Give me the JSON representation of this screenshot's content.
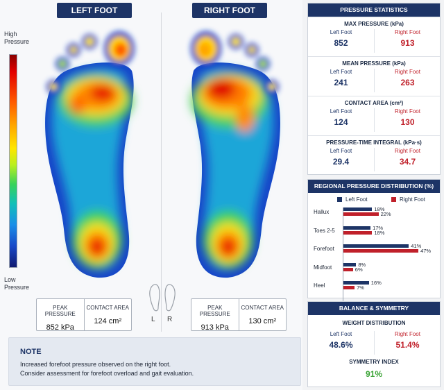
{
  "feet": {
    "left": {
      "title": "LEFT FOOT",
      "peak_label": "PEAK PRESSURE",
      "peak_value": "852 kPa",
      "contact_label": "CONTACT AREA",
      "contact_value": "124 cm²"
    },
    "right": {
      "title": "RIGHT FOOT",
      "peak_label": "PEAK PRESSURE",
      "peak_value": "913 kPa",
      "contact_label": "CONTACT AREA",
      "contact_value": "130 cm²"
    }
  },
  "scale": {
    "high_line1": "High",
    "high_line2": "Pressure",
    "low_line1": "Low",
    "low_line2": "Pressure"
  },
  "icon_labels": {
    "left": "L",
    "right": "R"
  },
  "note": {
    "title": "NOTE",
    "line1": "Increased forefoot pressure observed on the right foot.",
    "line2": "Consider assessment for forefoot overload and gait evaluation."
  },
  "stats": {
    "header": "PRESSURE STATISTICS",
    "left_label": "Left Foot",
    "right_label": "Right Foot",
    "metrics": [
      {
        "title": "MAX PRESSURE (kPa)",
        "left": "852",
        "right": "913"
      },
      {
        "title": "MEAN PRESSURE (kPa)",
        "left": "241",
        "right": "263"
      },
      {
        "title": "CONTACT AREA (cm²)",
        "left": "124",
        "right": "130"
      },
      {
        "title": "PRESSURE-TIME INTEGRAL (kPa·s)",
        "left": "29.4",
        "right": "34.7"
      }
    ]
  },
  "regional": {
    "header": "REGIONAL PRESSURE DISTRIBUTION (%)",
    "legend_left": "Left Foot",
    "legend_right": "Right Foot",
    "colors": {
      "left": "#1d3466",
      "right": "#c0202a"
    }
  },
  "balance": {
    "header": "BALANCE & SYMMETRY",
    "weight_title": "WEIGHT DISTRIBUTION",
    "left_label": "Left Foot",
    "left_value": "48.6%",
    "right_label": "Right Foot",
    "right_value": "51.4%",
    "symmetry_title": "SYMMETRY INDEX",
    "symmetry_value": "91%"
  },
  "chart_data": {
    "type": "bar",
    "categories": [
      "Hallux",
      "Toes 2-5",
      "Forefoot",
      "Midfoot",
      "Heel"
    ],
    "series": [
      {
        "name": "Left Foot",
        "values": [
          18,
          17,
          41,
          8,
          16
        ]
      },
      {
        "name": "Right Foot",
        "values": [
          22,
          18,
          47,
          6,
          7
        ]
      }
    ],
    "value_labels": {
      "left": [
        "18%",
        "17%",
        "41%",
        "8%",
        "16%"
      ],
      "right": [
        "22%",
        "18%",
        "47%",
        "6%",
        "7%"
      ]
    },
    "orientation": "horizontal",
    "legend": "top",
    "title": "REGIONAL PRESSURE DISTRIBUTION (%)"
  }
}
